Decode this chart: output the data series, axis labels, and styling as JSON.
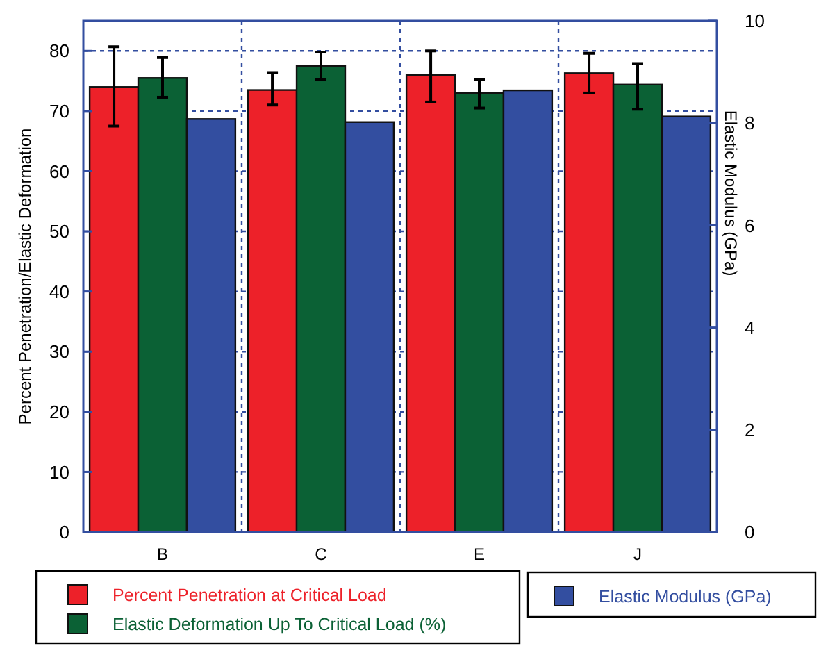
{
  "chart_data": {
    "type": "bar",
    "ylabel": "Percent Penetration/Elastic Deformation",
    "y2label": "Elastic Modulus (GPa)",
    "categories": [
      "B",
      "C",
      "E",
      "J"
    ],
    "series": [
      {
        "name": "Percent Penetration at Critical Load",
        "color": "#ed2129",
        "values": [
          74,
          73.5,
          76,
          76.3
        ],
        "errors": [
          [
            67.5,
            80.7
          ],
          [
            71,
            76.4
          ],
          [
            71.5,
            80
          ],
          [
            73,
            79.6
          ]
        ]
      },
      {
        "name": "Elastic Deformation Up To Critical Load (%)",
        "color": "#0b6135",
        "values": [
          75.5,
          77.5,
          73,
          74.4
        ],
        "errors": [
          [
            72.3,
            78.9
          ],
          [
            75.3,
            79.8
          ],
          [
            70.5,
            75.3
          ],
          [
            70.3,
            77.9
          ]
        ]
      },
      {
        "name": "Elastic Modulus (GPa)",
        "color": "#334ea0",
        "axis": "y2",
        "values": [
          8.08,
          8.02,
          8.64,
          8.13
        ]
      }
    ],
    "ylim": [
      0,
      85
    ],
    "yticks": [
      0,
      10,
      20,
      30,
      40,
      50,
      60,
      70,
      80
    ],
    "y2lim": [
      0,
      10
    ],
    "y2ticks": [
      0,
      2,
      4,
      6,
      8,
      10
    ],
    "grid": true,
    "legend": "bottom"
  }
}
